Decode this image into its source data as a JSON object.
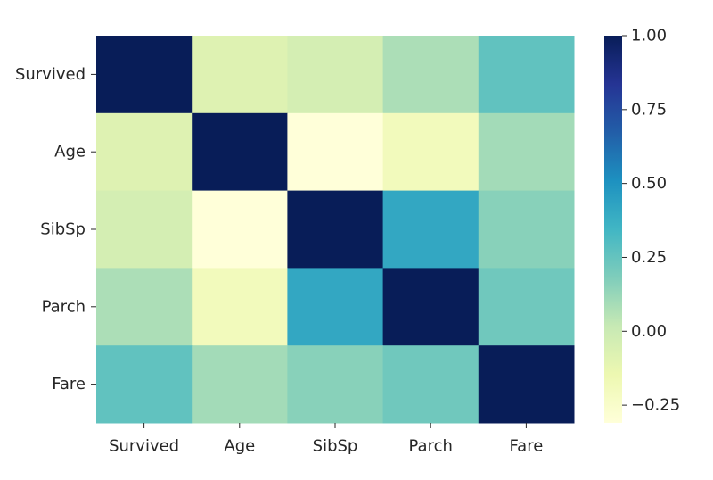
{
  "chart_data": {
    "type": "heatmap",
    "row_labels": [
      "Survived",
      "Age",
      "SibSp",
      "Parch",
      "Fare"
    ],
    "col_labels": [
      "Survived",
      "Age",
      "SibSp",
      "Parch",
      "Fare"
    ],
    "values": [
      [
        1.0,
        -0.08,
        -0.04,
        0.08,
        0.26
      ],
      [
        -0.08,
        1.0,
        -0.31,
        -0.19,
        0.1
      ],
      [
        -0.04,
        -0.31,
        1.0,
        0.41,
        0.16
      ],
      [
        0.08,
        -0.19,
        0.41,
        1.0,
        0.22
      ],
      [
        0.26,
        0.1,
        0.16,
        0.22,
        1.0
      ]
    ],
    "colormap": "YlGnBu",
    "vmin": -0.31,
    "vmax": 1.0,
    "colorbar": {
      "ticks": [
        1.0,
        0.75,
        0.5,
        0.25,
        0.0,
        -0.25
      ],
      "tick_labels": [
        "1.00",
        "0.75",
        "0.50",
        "0.25",
        "0.00",
        "−0.25"
      ]
    },
    "title": "",
    "xlabel": "",
    "ylabel": ""
  }
}
